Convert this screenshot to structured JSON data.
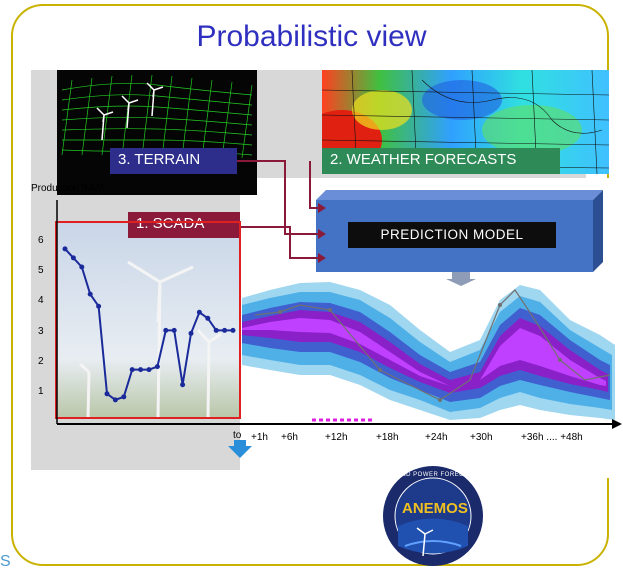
{
  "title": "Probabilistic view",
  "labels": {
    "terrain": "3.   TERRAIN",
    "weather": "2. WEATHER FORECASTS",
    "scada": "1.    SCADA",
    "model": "PREDICTION MODEL"
  },
  "y_axis_label": "Production [MW]",
  "y_ticks": [
    "6",
    "5",
    "4",
    "3",
    "2",
    "1"
  ],
  "x_origin": "to",
  "x_ticks": [
    "+1h",
    "+6h",
    "+12h",
    "+18h",
    "+24h",
    "+30h",
    "+36h ....  +48h"
  ],
  "logo": {
    "text": "ANEMOS",
    "ring_text": "WIND POWER FORECASTING"
  },
  "corner_text": "S",
  "colors": {
    "title": "#3030c0",
    "terrain": "#2d2d8c",
    "weather": "#2e8b57",
    "scada": "#8b1a3a",
    "model": "#4472c4",
    "frame": "#c9b200"
  },
  "chart_data": {
    "type": "line",
    "ylabel": "Production [MW]",
    "ylim": [
      0,
      7
    ],
    "series": [
      {
        "x": [
          0,
          1,
          2,
          3,
          4,
          5,
          6,
          7,
          8,
          9,
          10,
          11,
          12,
          13,
          14,
          15,
          16,
          17,
          18,
          19,
          20
        ],
        "values": [
          5.8,
          5.5,
          5.2,
          4.3,
          3.9,
          1.0,
          0.8,
          0.9,
          1.8,
          1.8,
          1.8,
          1.9,
          3.1,
          3.1,
          1.3,
          3.0,
          3.7,
          3.5,
          3.1,
          3.1,
          3.1
        ]
      }
    ]
  }
}
